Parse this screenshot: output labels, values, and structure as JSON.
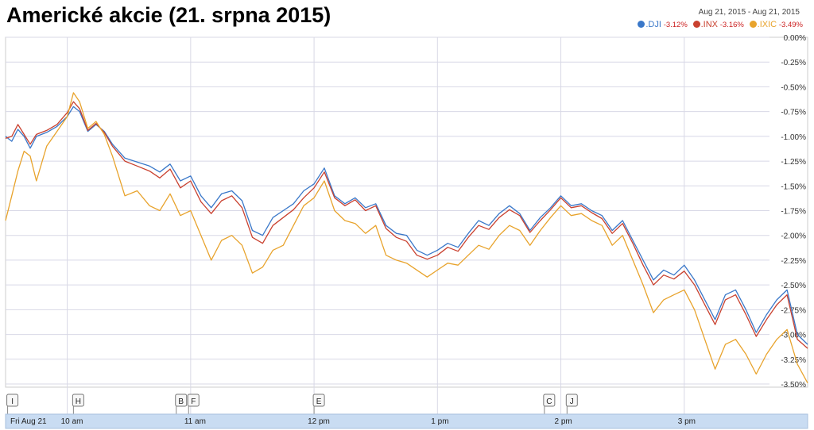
{
  "title": "Americké akcie (21. srpna 2015)",
  "date_range": "Aug 21, 2015  -  Aug 21, 2015",
  "legend": [
    {
      "symbol": ".DJI",
      "change": "-3.12%",
      "color": "#3a78c9"
    },
    {
      "symbol": ".INX",
      "change": "-3.16%",
      "color": "#c9412f"
    },
    {
      "symbol": ".IXIC",
      "change": "-3.49%",
      "color": "#e8a32c"
    }
  ],
  "chart_data": {
    "type": "line",
    "grid": true,
    "ylim": [
      -3.5,
      0.0
    ],
    "yticks": [
      "0.00%",
      "-0.25%",
      "-0.50%",
      "-0.75%",
      "-1.00%",
      "-1.25%",
      "-1.50%",
      "-1.75%",
      "-2.00%",
      "-2.25%",
      "-2.50%",
      "-2.75%",
      "-3.00%",
      "-3.25%",
      "-3.50%"
    ],
    "ytick_values": [
      0,
      -0.25,
      -0.5,
      -0.75,
      -1.0,
      -1.25,
      -1.5,
      -1.75,
      -2.0,
      -2.25,
      -2.5,
      -2.75,
      -3.0,
      -3.25,
      -3.5
    ],
    "xticks": [
      {
        "label": "Fri Aug 21",
        "time": "9:30"
      },
      {
        "label": "10 am",
        "time": "10:00"
      },
      {
        "label": "11 am",
        "time": "11:00"
      },
      {
        "label": "12 pm",
        "time": "12:00"
      },
      {
        "label": "1 pm",
        "time": "13:00"
      },
      {
        "label": "2 pm",
        "time": "14:00"
      },
      {
        "label": "3 pm",
        "time": "15:00"
      }
    ],
    "xlim": [
      "9:30",
      "16:00"
    ],
    "markers": [
      {
        "label": "I",
        "time": "9:31"
      },
      {
        "label": "H",
        "time": "10:03"
      },
      {
        "label": "B",
        "time": "10:53"
      },
      {
        "label": "F",
        "time": "10:59"
      },
      {
        "label": "E",
        "time": "12:00"
      },
      {
        "label": "C",
        "time": "13:52"
      },
      {
        "label": "J",
        "time": "14:03"
      }
    ],
    "series": [
      {
        "name": ".DJI",
        "color": "#3a78c9",
        "points": [
          [
            "9:30",
            -1.0
          ],
          [
            "9:33",
            -1.05
          ],
          [
            "9:36",
            -0.93
          ],
          [
            "9:39",
            -1.0
          ],
          [
            "9:42",
            -1.12
          ],
          [
            "9:45",
            -1.0
          ],
          [
            "9:50",
            -0.96
          ],
          [
            "9:55",
            -0.9
          ],
          [
            "10:00",
            -0.8
          ],
          [
            "10:03",
            -0.7
          ],
          [
            "10:06",
            -0.75
          ],
          [
            "10:10",
            -0.95
          ],
          [
            "10:14",
            -0.88
          ],
          [
            "10:18",
            -0.95
          ],
          [
            "10:22",
            -1.08
          ],
          [
            "10:28",
            -1.22
          ],
          [
            "10:34",
            -1.26
          ],
          [
            "10:40",
            -1.3
          ],
          [
            "10:45",
            -1.36
          ],
          [
            "10:50",
            -1.28
          ],
          [
            "10:55",
            -1.45
          ],
          [
            "11:00",
            -1.4
          ],
          [
            "11:05",
            -1.6
          ],
          [
            "11:10",
            -1.72
          ],
          [
            "11:15",
            -1.58
          ],
          [
            "11:20",
            -1.55
          ],
          [
            "11:25",
            -1.65
          ],
          [
            "11:30",
            -1.95
          ],
          [
            "11:35",
            -2.0
          ],
          [
            "11:40",
            -1.82
          ],
          [
            "11:45",
            -1.75
          ],
          [
            "11:50",
            -1.68
          ],
          [
            "11:55",
            -1.55
          ],
          [
            "12:00",
            -1.48
          ],
          [
            "12:05",
            -1.32
          ],
          [
            "12:10",
            -1.6
          ],
          [
            "12:15",
            -1.68
          ],
          [
            "12:20",
            -1.62
          ],
          [
            "12:25",
            -1.72
          ],
          [
            "12:30",
            -1.68
          ],
          [
            "12:35",
            -1.9
          ],
          [
            "12:40",
            -1.98
          ],
          [
            "12:45",
            -2.0
          ],
          [
            "12:50",
            -2.15
          ],
          [
            "12:55",
            -2.2
          ],
          [
            "13:00",
            -2.15
          ],
          [
            "13:05",
            -2.08
          ],
          [
            "13:10",
            -2.12
          ],
          [
            "13:15",
            -1.98
          ],
          [
            "13:20",
            -1.85
          ],
          [
            "13:25",
            -1.9
          ],
          [
            "13:30",
            -1.78
          ],
          [
            "13:35",
            -1.7
          ],
          [
            "13:40",
            -1.78
          ],
          [
            "13:45",
            -1.95
          ],
          [
            "13:50",
            -1.82
          ],
          [
            "13:55",
            -1.72
          ],
          [
            "14:00",
            -1.6
          ],
          [
            "14:05",
            -1.7
          ],
          [
            "14:10",
            -1.68
          ],
          [
            "14:15",
            -1.75
          ],
          [
            "14:20",
            -1.8
          ],
          [
            "14:25",
            -1.95
          ],
          [
            "14:30",
            -1.85
          ],
          [
            "14:35",
            -2.05
          ],
          [
            "14:40",
            -2.25
          ],
          [
            "14:45",
            -2.45
          ],
          [
            "14:50",
            -2.35
          ],
          [
            "14:55",
            -2.4
          ],
          [
            "15:00",
            -2.3
          ],
          [
            "15:05",
            -2.45
          ],
          [
            "15:10",
            -2.65
          ],
          [
            "15:15",
            -2.85
          ],
          [
            "15:20",
            -2.6
          ],
          [
            "15:25",
            -2.55
          ],
          [
            "15:30",
            -2.75
          ],
          [
            "15:35",
            -2.98
          ],
          [
            "15:40",
            -2.8
          ],
          [
            "15:45",
            -2.65
          ],
          [
            "15:50",
            -2.55
          ],
          [
            "15:55",
            -3.0
          ],
          [
            "16:00",
            -3.1
          ]
        ]
      },
      {
        "name": ".INX",
        "color": "#c9412f",
        "points": [
          [
            "9:30",
            -1.02
          ],
          [
            "9:33",
            -1.0
          ],
          [
            "9:36",
            -0.88
          ],
          [
            "9:39",
            -0.98
          ],
          [
            "9:42",
            -1.08
          ],
          [
            "9:45",
            -0.98
          ],
          [
            "9:50",
            -0.94
          ],
          [
            "9:55",
            -0.88
          ],
          [
            "10:00",
            -0.76
          ],
          [
            "10:03",
            -0.65
          ],
          [
            "10:06",
            -0.72
          ],
          [
            "10:10",
            -0.94
          ],
          [
            "10:14",
            -0.87
          ],
          [
            "10:18",
            -0.96
          ],
          [
            "10:22",
            -1.1
          ],
          [
            "10:28",
            -1.25
          ],
          [
            "10:34",
            -1.3
          ],
          [
            "10:40",
            -1.35
          ],
          [
            "10:45",
            -1.42
          ],
          [
            "10:50",
            -1.33
          ],
          [
            "10:55",
            -1.52
          ],
          [
            "11:00",
            -1.45
          ],
          [
            "11:05",
            -1.66
          ],
          [
            "11:10",
            -1.78
          ],
          [
            "11:15",
            -1.65
          ],
          [
            "11:20",
            -1.6
          ],
          [
            "11:25",
            -1.72
          ],
          [
            "11:30",
            -2.02
          ],
          [
            "11:35",
            -2.08
          ],
          [
            "11:40",
            -1.9
          ],
          [
            "11:45",
            -1.82
          ],
          [
            "11:50",
            -1.74
          ],
          [
            "11:55",
            -1.62
          ],
          [
            "12:00",
            -1.52
          ],
          [
            "12:05",
            -1.36
          ],
          [
            "12:10",
            -1.62
          ],
          [
            "12:15",
            -1.7
          ],
          [
            "12:20",
            -1.64
          ],
          [
            "12:25",
            -1.75
          ],
          [
            "12:30",
            -1.7
          ],
          [
            "12:35",
            -1.93
          ],
          [
            "12:40",
            -2.02
          ],
          [
            "12:45",
            -2.06
          ],
          [
            "12:50",
            -2.2
          ],
          [
            "12:55",
            -2.24
          ],
          [
            "13:00",
            -2.2
          ],
          [
            "13:05",
            -2.12
          ],
          [
            "13:10",
            -2.16
          ],
          [
            "13:15",
            -2.02
          ],
          [
            "13:20",
            -1.9
          ],
          [
            "13:25",
            -1.94
          ],
          [
            "13:30",
            -1.82
          ],
          [
            "13:35",
            -1.74
          ],
          [
            "13:40",
            -1.8
          ],
          [
            "13:45",
            -1.97
          ],
          [
            "13:50",
            -1.85
          ],
          [
            "13:55",
            -1.74
          ],
          [
            "14:00",
            -1.62
          ],
          [
            "14:05",
            -1.72
          ],
          [
            "14:10",
            -1.7
          ],
          [
            "14:15",
            -1.77
          ],
          [
            "14:20",
            -1.83
          ],
          [
            "14:25",
            -1.98
          ],
          [
            "14:30",
            -1.88
          ],
          [
            "14:35",
            -2.08
          ],
          [
            "14:40",
            -2.3
          ],
          [
            "14:45",
            -2.5
          ],
          [
            "14:50",
            -2.4
          ],
          [
            "14:55",
            -2.44
          ],
          [
            "15:00",
            -2.36
          ],
          [
            "15:05",
            -2.5
          ],
          [
            "15:10",
            -2.7
          ],
          [
            "15:15",
            -2.9
          ],
          [
            "15:20",
            -2.65
          ],
          [
            "15:25",
            -2.6
          ],
          [
            "15:30",
            -2.8
          ],
          [
            "15:35",
            -3.02
          ],
          [
            "15:40",
            -2.85
          ],
          [
            "15:45",
            -2.7
          ],
          [
            "15:50",
            -2.6
          ],
          [
            "15:55",
            -3.05
          ],
          [
            "16:00",
            -3.14
          ]
        ]
      },
      {
        "name": ".IXIC",
        "color": "#e8a32c",
        "points": [
          [
            "9:30",
            -1.85
          ],
          [
            "9:33",
            -1.6
          ],
          [
            "9:36",
            -1.35
          ],
          [
            "9:39",
            -1.15
          ],
          [
            "9:42",
            -1.2
          ],
          [
            "9:45",
            -1.45
          ],
          [
            "9:50",
            -1.1
          ],
          [
            "9:55",
            -0.95
          ],
          [
            "10:00",
            -0.8
          ],
          [
            "10:03",
            -0.56
          ],
          [
            "10:06",
            -0.65
          ],
          [
            "10:10",
            -0.92
          ],
          [
            "10:14",
            -0.85
          ],
          [
            "10:18",
            -0.98
          ],
          [
            "10:22",
            -1.2
          ],
          [
            "10:28",
            -1.6
          ],
          [
            "10:34",
            -1.55
          ],
          [
            "10:40",
            -1.7
          ],
          [
            "10:45",
            -1.75
          ],
          [
            "10:50",
            -1.58
          ],
          [
            "10:55",
            -1.8
          ],
          [
            "11:00",
            -1.75
          ],
          [
            "11:05",
            -2.0
          ],
          [
            "11:10",
            -2.25
          ],
          [
            "11:15",
            -2.05
          ],
          [
            "11:20",
            -2.0
          ],
          [
            "11:25",
            -2.1
          ],
          [
            "11:30",
            -2.38
          ],
          [
            "11:35",
            -2.32
          ],
          [
            "11:40",
            -2.15
          ],
          [
            "11:45",
            -2.1
          ],
          [
            "11:50",
            -1.9
          ],
          [
            "11:55",
            -1.7
          ],
          [
            "12:00",
            -1.62
          ],
          [
            "12:05",
            -1.45
          ],
          [
            "12:10",
            -1.75
          ],
          [
            "12:15",
            -1.85
          ],
          [
            "12:20",
            -1.88
          ],
          [
            "12:25",
            -1.98
          ],
          [
            "12:30",
            -1.9
          ],
          [
            "12:35",
            -2.2
          ],
          [
            "12:40",
            -2.25
          ],
          [
            "12:45",
            -2.28
          ],
          [
            "12:50",
            -2.35
          ],
          [
            "12:55",
            -2.42
          ],
          [
            "13:00",
            -2.35
          ],
          [
            "13:05",
            -2.28
          ],
          [
            "13:10",
            -2.3
          ],
          [
            "13:15",
            -2.2
          ],
          [
            "13:20",
            -2.1
          ],
          [
            "13:25",
            -2.14
          ],
          [
            "13:30",
            -2.0
          ],
          [
            "13:35",
            -1.9
          ],
          [
            "13:40",
            -1.95
          ],
          [
            "13:45",
            -2.1
          ],
          [
            "13:50",
            -1.95
          ],
          [
            "13:55",
            -1.82
          ],
          [
            "14:00",
            -1.7
          ],
          [
            "14:05",
            -1.8
          ],
          [
            "14:10",
            -1.78
          ],
          [
            "14:15",
            -1.85
          ],
          [
            "14:20",
            -1.9
          ],
          [
            "14:25",
            -2.1
          ],
          [
            "14:30",
            -2.0
          ],
          [
            "14:35",
            -2.25
          ],
          [
            "14:40",
            -2.5
          ],
          [
            "14:45",
            -2.78
          ],
          [
            "14:50",
            -2.65
          ],
          [
            "14:55",
            -2.6
          ],
          [
            "15:00",
            -2.55
          ],
          [
            "15:05",
            -2.75
          ],
          [
            "15:10",
            -3.05
          ],
          [
            "15:15",
            -3.35
          ],
          [
            "15:20",
            -3.1
          ],
          [
            "15:25",
            -3.05
          ],
          [
            "15:30",
            -3.2
          ],
          [
            "15:35",
            -3.4
          ],
          [
            "15:40",
            -3.2
          ],
          [
            "15:45",
            -3.05
          ],
          [
            "15:50",
            -2.95
          ],
          [
            "15:55",
            -3.3
          ],
          [
            "16:00",
            -3.49
          ]
        ]
      }
    ]
  }
}
